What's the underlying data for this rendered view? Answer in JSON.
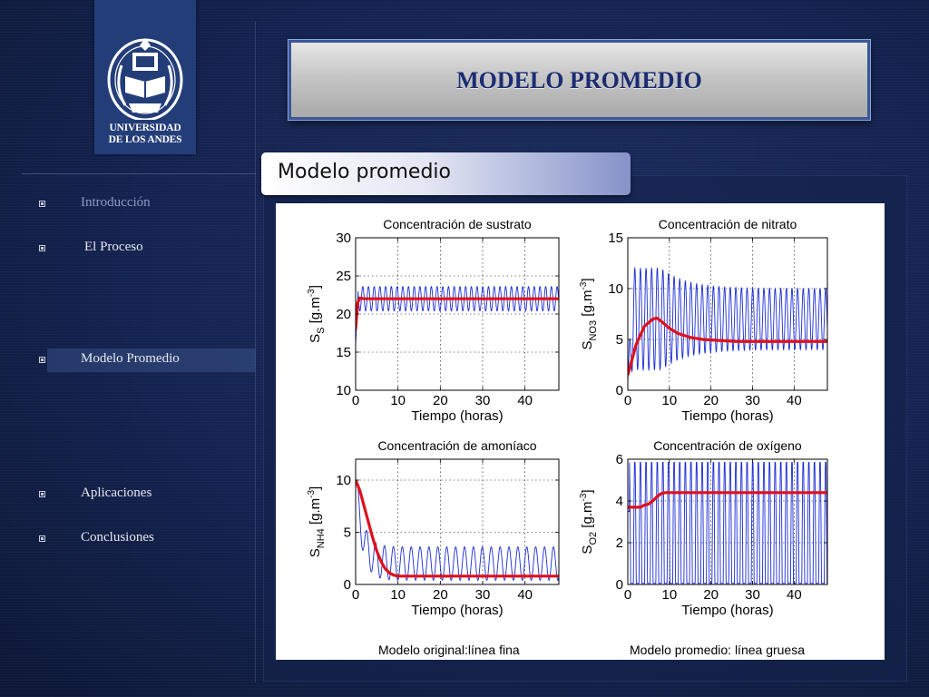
{
  "slide": {
    "title": "MODELO PROMEDIO",
    "subtitle": "Modelo promedio"
  },
  "logo": {
    "line1": "UNIVERSIDAD",
    "line2": "DE LOS ANDES"
  },
  "sidebar": {
    "items": [
      {
        "label": "Introducción",
        "state": "dim"
      },
      {
        "label": "El Proceso",
        "state": "normal"
      },
      {
        "label": "Modelo Promedio",
        "state": "active"
      },
      {
        "label": "Aplicaciones",
        "state": "normal"
      },
      {
        "label": "Conclusiones",
        "state": "normal"
      }
    ]
  },
  "colors": {
    "fine_line": "#1a2bd6",
    "thick_line": "#e0101a",
    "title_text": "#1b2c72"
  },
  "figure": {
    "caption_left": "Modelo original:línea fina",
    "caption_right": "Modelo promedio: línea gruesa"
  },
  "chart_data": [
    {
      "type": "line",
      "title": "Concentración de sustrato",
      "xlabel": "Tiempo (horas)",
      "ylabel": "S_S [g.m^-3]",
      "xlim": [
        0,
        48
      ],
      "ylim": [
        10,
        30
      ],
      "xticks": [
        0,
        10,
        20,
        30,
        40
      ],
      "yticks": [
        10,
        15,
        20,
        25,
        30
      ],
      "grid": true,
      "series": [
        {
          "style": "fine",
          "x": [
            0,
            0.5,
            1,
            1.7,
            2.3,
            3.0,
            3.7,
            4.3,
            5.0,
            6.3,
            7.7,
            9.0,
            10.3,
            12,
            15,
            18,
            21,
            24,
            27,
            30,
            33,
            36,
            39,
            42,
            45,
            48
          ],
          "y": [
            16,
            23,
            20,
            23.5,
            20.5,
            23.5,
            20.5,
            23.5,
            20.5,
            23.5,
            20.5,
            23.5,
            20.5,
            23.5,
            20.5,
            23.5,
            20.5,
            23.5,
            20.5,
            23.5,
            20.5,
            23.5,
            20.5,
            23.5,
            20.5,
            22
          ],
          "period": 1.35,
          "center": 22,
          "amplitude": 1.6
        },
        {
          "style": "thick",
          "x": [
            0,
            0.5,
            1,
            2,
            48
          ],
          "y": [
            18,
            21.5,
            22.1,
            22,
            22
          ]
        }
      ]
    },
    {
      "type": "line",
      "title": "Concentración de nitrato",
      "xlabel": "Tiempo (horas)",
      "ylabel": "S_NO3 [g.m^-3]",
      "xlim": [
        0,
        48
      ],
      "ylim": [
        0,
        15
      ],
      "xticks": [
        0,
        10,
        20,
        30,
        40
      ],
      "yticks": [
        0,
        5,
        10,
        15
      ],
      "grid": true,
      "series": [
        {
          "style": "fine",
          "period": 1.35,
          "center_start": 7,
          "center_end": 7,
          "amplitude_start": 5,
          "amplitude_end": 3,
          "x": [
            0,
            48
          ],
          "y": [
            1,
            7
          ]
        },
        {
          "style": "thick",
          "x": [
            0,
            2,
            4,
            6,
            7,
            8,
            10,
            12,
            15,
            18,
            22,
            26,
            30,
            36,
            42,
            48
          ],
          "y": [
            1.5,
            4.5,
            6.3,
            7,
            7.1,
            6.8,
            6.1,
            5.6,
            5.2,
            5.0,
            4.9,
            4.8,
            4.8,
            4.8,
            4.8,
            4.8
          ]
        }
      ]
    },
    {
      "type": "line",
      "title": "Concentración de amoníaco",
      "xlabel": "Tiempo (horas)",
      "ylabel": "S_NH4 [g.m^-3]",
      "xlim": [
        0,
        48
      ],
      "ylim": [
        0,
        12
      ],
      "xticks": [
        0,
        10,
        20,
        30,
        40
      ],
      "yticks": [
        0,
        5,
        10
      ],
      "grid": true,
      "series": [
        {
          "style": "fine",
          "period": 2.1,
          "center": 2,
          "amplitude": 1.6,
          "x": [
            0,
            48
          ],
          "y": [
            10,
            2
          ]
        },
        {
          "style": "thick",
          "x": [
            0,
            1,
            2,
            3,
            4,
            5,
            6,
            7,
            8,
            9,
            10,
            12,
            48
          ],
          "y": [
            10,
            9,
            7.5,
            6,
            4.5,
            3.2,
            2.2,
            1.5,
            1.1,
            0.9,
            0.8,
            0.8,
            0.8
          ]
        }
      ]
    },
    {
      "type": "line",
      "title": "Concentración de oxígeno",
      "xlabel": "Tiempo (horas)",
      "ylabel": "S_O2 [g.m^-3]",
      "xlim": [
        0,
        48
      ],
      "ylim": [
        0,
        6
      ],
      "xticks": [
        0,
        10,
        20,
        30,
        40
      ],
      "yticks": [
        0,
        2,
        4,
        6
      ],
      "grid": true,
      "series": [
        {
          "style": "fine",
          "period": 1.35,
          "low": 0,
          "high": 5.9,
          "x": [
            0,
            48
          ],
          "y": [
            3.5,
            2.5
          ]
        },
        {
          "style": "thick",
          "x": [
            0,
            3,
            4,
            5,
            6,
            7,
            8,
            9,
            10,
            48
          ],
          "y": [
            3.7,
            3.7,
            3.8,
            3.85,
            4.0,
            4.2,
            4.35,
            4.4,
            4.4,
            4.4
          ]
        }
      ]
    }
  ]
}
